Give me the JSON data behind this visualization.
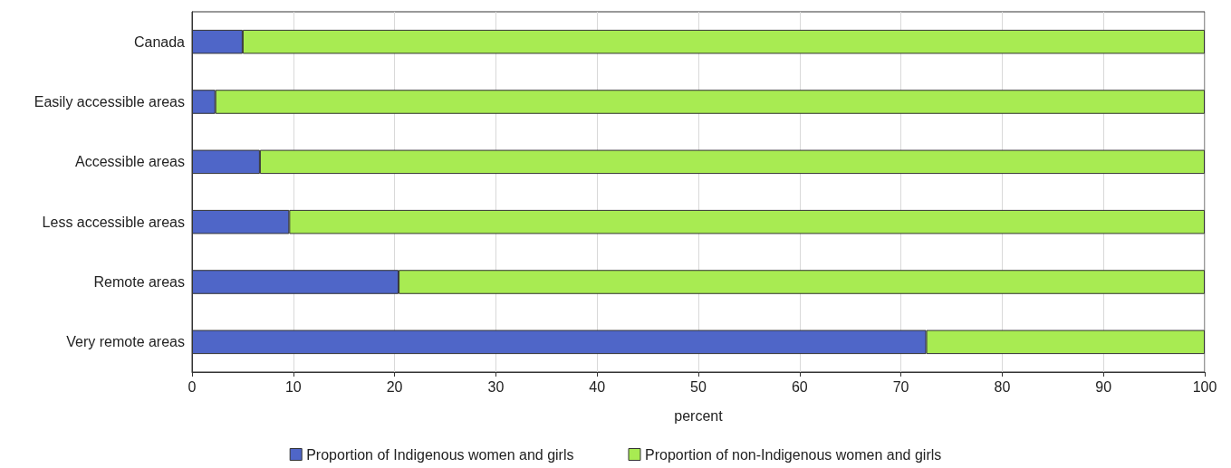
{
  "chart_data": {
    "type": "bar",
    "orientation": "horizontal",
    "stacked": true,
    "xlabel": "percent",
    "categories": [
      "Canada",
      "Easily accessible areas",
      "Accessible areas",
      "Less accessible areas",
      "Remote areas",
      "Very remote areas"
    ],
    "series": [
      {
        "name": "Proportion of Indigenous women and girls",
        "color": "#4f66c8",
        "values": [
          5.0,
          2.3,
          6.7,
          9.6,
          20.4,
          72.5
        ]
      },
      {
        "name": "Proportion of non-Indigenous women and girls",
        "color": "#a8eb52",
        "values": [
          95.0,
          97.7,
          93.3,
          90.4,
          79.6,
          27.5
        ]
      }
    ],
    "xlim": [
      0,
      100
    ],
    "xticks": [
      0,
      10,
      20,
      30,
      40,
      50,
      60,
      70,
      80,
      90,
      100
    ],
    "grid": "x",
    "legend": "bottom"
  }
}
